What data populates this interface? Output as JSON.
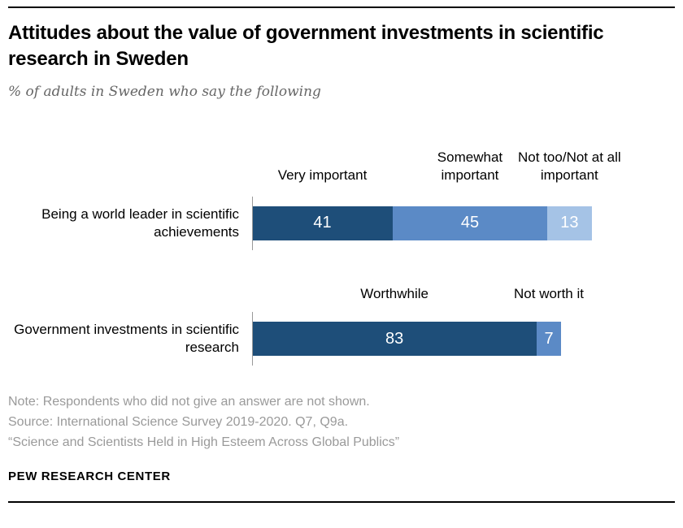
{
  "title": "Attitudes about the value of government investments in scientific research in Sweden",
  "subtitle": "% of adults in Sweden who say the following",
  "chart_data": {
    "type": "bar",
    "stacked": true,
    "orientation": "horizontal",
    "unit": "%",
    "xmax": 100,
    "groups": [
      {
        "row_label": "Being a world leader in scientific achievements",
        "headers": [
          "Very important",
          "Somewhat important",
          "Not too/Not at all important"
        ],
        "values": [
          41,
          45,
          13
        ],
        "colors": [
          "#1e4e79",
          "#5b8ac6",
          "#a5c3e6"
        ]
      },
      {
        "row_label": "Government investments in scientific research",
        "headers": [
          "Worthwhile",
          "Not worth it"
        ],
        "values": [
          83,
          7
        ],
        "colors": [
          "#1e4e79",
          "#5b8ac6"
        ]
      }
    ]
  },
  "notes": [
    "Note: Respondents who did not give an answer are not shown.",
    "Source: International Science Survey 2019-2020. Q7, Q9a.",
    "“Science and Scientists Held in High Esteem Across Global Publics”"
  ],
  "footer": "PEW RESEARCH CENTER"
}
